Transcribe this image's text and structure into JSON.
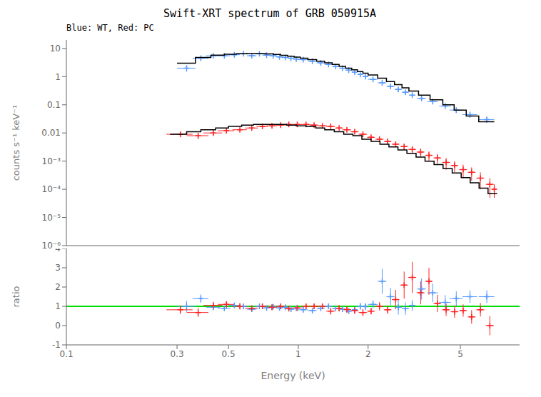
{
  "chart_data": [
    {
      "type": "scatter",
      "title": "Swift-XRT spectrum of GRB 050915A",
      "subtitle": "Blue: WT, Red: PC",
      "y_label": "counts s⁻¹ keV⁻¹",
      "log": true,
      "tick_labels": "y",
      "xlim": [
        0.1,
        9.0
      ],
      "xticks": [
        0.1,
        0.3,
        0.5,
        1,
        2,
        5
      ],
      "ylim": [
        1e-06,
        20
      ],
      "yticks": [
        {
          "value": 1e-06,
          "label": "10⁻⁶"
        },
        {
          "value": 1e-05,
          "label": "10⁻⁵"
        },
        {
          "value": 0.0001,
          "label": "10⁻⁴"
        },
        {
          "value": 0.001,
          "label": "10⁻³"
        },
        0.01,
        0.1,
        1,
        10
      ],
      "series": [
        {
          "color": "#5599ff",
          "marker": "plus",
          "x": [
            0.33,
            0.38,
            0.43,
            0.48,
            0.53,
            0.58,
            0.63,
            0.68,
            0.73,
            0.78,
            0.83,
            0.88,
            0.93,
            0.98,
            1.05,
            1.15,
            1.25,
            1.35,
            1.45,
            1.55,
            1.65,
            1.75,
            1.85,
            1.95,
            2.1,
            2.3,
            2.5,
            2.7,
            2.9,
            3.1,
            3.4,
            3.8,
            4.3,
            4.8,
            5.5,
            6.5
          ],
          "x_err": [
            0.03,
            0.03,
            0.03,
            0.03,
            0.03,
            0.03,
            0.03,
            0.03,
            0.03,
            0.03,
            0.03,
            0.03,
            0.03,
            0.03,
            0.05,
            0.05,
            0.05,
            0.05,
            0.05,
            0.05,
            0.05,
            0.05,
            0.05,
            0.05,
            0.1,
            0.1,
            0.1,
            0.1,
            0.1,
            0.1,
            0.15,
            0.2,
            0.25,
            0.3,
            0.4,
            0.5
          ],
          "values": [
            2.0,
            4.5,
            5.5,
            5.5,
            6.0,
            6.5,
            5.5,
            6.5,
            5.8,
            5.5,
            5.0,
            4.8,
            4.5,
            4.2,
            4.0,
            3.5,
            3.1,
            2.7,
            2.3,
            2.0,
            1.7,
            1.45,
            1.2,
            1.0,
            0.8,
            0.6,
            0.45,
            0.35,
            0.28,
            0.22,
            0.17,
            0.13,
            0.09,
            0.065,
            0.045,
            0.03
          ],
          "y_err_lo": [
            0.5,
            0.6,
            0.6,
            0.5,
            0.5,
            0.5,
            0.5,
            0.5,
            0.4,
            0.4,
            0.35,
            0.35,
            0.3,
            0.3,
            0.3,
            0.25,
            0.22,
            0.2,
            0.18,
            0.15,
            0.14,
            0.12,
            0.1,
            0.09,
            0.08,
            0.07,
            0.06,
            0.05,
            0.04,
            0.035,
            0.03,
            0.025,
            0.018,
            0.014,
            0.01,
            0.007
          ],
          "y_err_hi": [
            0.5,
            0.6,
            0.6,
            0.5,
            0.5,
            0.5,
            0.5,
            0.5,
            0.4,
            0.4,
            0.35,
            0.35,
            0.3,
            0.3,
            0.3,
            0.25,
            0.22,
            0.2,
            0.18,
            0.15,
            0.14,
            0.12,
            0.1,
            0.09,
            0.08,
            0.07,
            0.06,
            0.05,
            0.04,
            0.035,
            0.03,
            0.025,
            0.018,
            0.014,
            0.01,
            0.007
          ]
        },
        {
          "color": "#ff2222",
          "marker": "plus",
          "x": [
            0.31,
            0.37,
            0.43,
            0.49,
            0.56,
            0.63,
            0.7,
            0.77,
            0.84,
            0.91,
            0.99,
            1.08,
            1.17,
            1.27,
            1.38,
            1.5,
            1.62,
            1.75,
            1.9,
            2.06,
            2.24,
            2.43,
            2.63,
            2.86,
            3.1,
            3.37,
            3.66,
            3.98,
            4.34,
            4.72,
            5.14,
            5.59,
            6.1,
            6.7,
            7.0
          ],
          "x_err": [
            0.04,
            0.04,
            0.04,
            0.04,
            0.04,
            0.04,
            0.04,
            0.04,
            0.04,
            0.04,
            0.05,
            0.05,
            0.05,
            0.06,
            0.06,
            0.06,
            0.07,
            0.07,
            0.08,
            0.08,
            0.09,
            0.09,
            0.1,
            0.11,
            0.12,
            0.13,
            0.14,
            0.15,
            0.17,
            0.18,
            0.2,
            0.22,
            0.24,
            0.27,
            0.15
          ],
          "values": [
            0.009,
            0.008,
            0.01,
            0.012,
            0.013,
            0.015,
            0.017,
            0.018,
            0.019,
            0.02,
            0.02,
            0.02,
            0.019,
            0.018,
            0.017,
            0.015,
            0.013,
            0.011,
            0.009,
            0.007,
            0.006,
            0.005,
            0.004,
            0.0033,
            0.0026,
            0.0021,
            0.0016,
            0.0013,
            0.0009,
            0.0007,
            0.0005,
            0.0004,
            0.00025,
            0.00015,
            0.0001
          ],
          "y_err_lo": [
            0.002,
            0.002,
            0.002,
            0.002,
            0.002,
            0.002,
            0.002,
            0.002,
            0.002,
            0.002,
            0.002,
            0.0018,
            0.0018,
            0.0018,
            0.0016,
            0.0016,
            0.0014,
            0.0013,
            0.0012,
            0.001,
            0.001,
            0.001,
            0.0009,
            0.0008,
            0.0007,
            0.0007,
            0.0006,
            0.0005,
            0.0004,
            0.0003,
            0.00025,
            0.0002,
            0.00015,
            0.0001,
            5e-05
          ],
          "y_err_hi": [
            0.002,
            0.002,
            0.002,
            0.002,
            0.002,
            0.002,
            0.002,
            0.002,
            0.002,
            0.002,
            0.002,
            0.0018,
            0.0018,
            0.0018,
            0.0016,
            0.0016,
            0.0014,
            0.0013,
            0.0012,
            0.001,
            0.001,
            0.001,
            0.0009,
            0.0008,
            0.0007,
            0.0007,
            0.0006,
            0.0005,
            0.0004,
            0.0003,
            0.00025,
            0.0002,
            0.00015,
            0.0001,
            5e-05
          ]
        },
        {
          "type": "step",
          "color": "black",
          "x_lo": [
            0.3,
            0.36,
            0.42,
            0.48,
            0.54,
            0.6,
            0.66,
            0.72,
            0.78,
            0.84,
            0.9,
            0.96,
            1.02,
            1.1,
            1.2,
            1.3,
            1.4,
            1.5,
            1.6,
            1.7,
            1.8,
            1.9,
            2.0,
            2.2,
            2.4,
            2.6,
            2.8,
            3.0,
            3.3,
            3.7,
            4.2,
            4.7,
            5.3,
            6.0
          ],
          "x_hi": [
            0.36,
            0.42,
            0.48,
            0.54,
            0.6,
            0.66,
            0.72,
            0.78,
            0.84,
            0.9,
            0.96,
            1.02,
            1.1,
            1.2,
            1.3,
            1.4,
            1.5,
            1.6,
            1.7,
            1.8,
            1.9,
            2.0,
            2.2,
            2.4,
            2.6,
            2.8,
            3.0,
            3.3,
            3.7,
            4.2,
            4.7,
            5.3,
            6.0,
            7.0
          ],
          "values": [
            3.0,
            4.8,
            5.8,
            6.2,
            6.5,
            6.6,
            6.6,
            6.4,
            6.1,
            5.7,
            5.3,
            4.9,
            4.5,
            4.0,
            3.5,
            3.1,
            2.7,
            2.3,
            2.0,
            1.75,
            1.52,
            1.32,
            1.15,
            0.88,
            0.67,
            0.52,
            0.4,
            0.31,
            0.22,
            0.15,
            0.1,
            0.065,
            0.04,
            0.025
          ]
        },
        {
          "type": "step",
          "color": "black",
          "x_lo": [
            0.28,
            0.33,
            0.38,
            0.44,
            0.5,
            0.57,
            0.64,
            0.72,
            0.8,
            0.89,
            0.98,
            1.08,
            1.19,
            1.3,
            1.43,
            1.57,
            1.72,
            1.88,
            2.06,
            2.25,
            2.46,
            2.69,
            2.94,
            3.22,
            3.52,
            3.85,
            4.21,
            4.61,
            5.04,
            5.51,
            6.02,
            6.58
          ],
          "x_hi": [
            0.33,
            0.38,
            0.44,
            0.5,
            0.57,
            0.64,
            0.72,
            0.8,
            0.89,
            0.98,
            1.08,
            1.19,
            1.3,
            1.43,
            1.57,
            1.72,
            1.88,
            2.06,
            2.25,
            2.46,
            2.69,
            2.94,
            3.22,
            3.52,
            3.85,
            4.21,
            4.61,
            5.04,
            5.51,
            6.02,
            6.58,
            7.2
          ],
          "values": [
            0.009,
            0.011,
            0.013,
            0.015,
            0.017,
            0.019,
            0.02,
            0.02,
            0.02,
            0.019,
            0.018,
            0.017,
            0.015,
            0.013,
            0.011,
            0.009,
            0.008,
            0.006,
            0.005,
            0.004,
            0.0032,
            0.0025,
            0.0019,
            0.0014,
            0.001,
            0.00075,
            0.00055,
            0.00038,
            0.00026,
            0.00017,
            0.00011,
            7e-05
          ]
        }
      ]
    },
    {
      "type": "scatter",
      "x_label": "Energy (keV)",
      "y_label": "ratio",
      "log": "x",
      "xlim": [
        0.1,
        9.0
      ],
      "xticks": [
        0.1,
        0.3,
        0.5,
        1,
        2,
        5
      ],
      "ylim": [
        -1,
        4
      ],
      "yticks": [
        -1,
        0,
        1,
        2,
        3,
        4
      ],
      "series": [
        {
          "type": "hline",
          "color": "#00dd00",
          "values": [
            1.0
          ]
        },
        {
          "color": "#5599ff",
          "marker": "plus",
          "x": [
            0.33,
            0.38,
            0.43,
            0.48,
            0.53,
            0.58,
            0.63,
            0.68,
            0.73,
            0.78,
            0.83,
            0.88,
            0.93,
            0.98,
            1.05,
            1.15,
            1.25,
            1.35,
            1.45,
            1.55,
            1.65,
            1.75,
            1.85,
            1.95,
            2.1,
            2.3,
            2.5,
            2.7,
            2.9,
            3.1,
            3.4,
            3.8,
            4.3,
            4.8,
            5.5,
            6.5
          ],
          "x_err": [
            0.03,
            0.03,
            0.03,
            0.03,
            0.03,
            0.03,
            0.03,
            0.03,
            0.03,
            0.03,
            0.03,
            0.03,
            0.03,
            0.03,
            0.05,
            0.05,
            0.05,
            0.05,
            0.05,
            0.05,
            0.05,
            0.05,
            0.05,
            0.05,
            0.1,
            0.1,
            0.1,
            0.1,
            0.1,
            0.1,
            0.15,
            0.2,
            0.25,
            0.3,
            0.4,
            0.5
          ],
          "values": [
            1.0,
            1.4,
            0.95,
            0.9,
            1.05,
            1.0,
            0.85,
            1.0,
            0.92,
            0.98,
            0.92,
            0.95,
            0.85,
            0.9,
            0.82,
            0.78,
            0.9,
            1.0,
            0.9,
            0.85,
            0.75,
            0.82,
            1.0,
            0.98,
            1.1,
            2.3,
            1.5,
            0.95,
            0.88,
            1.05,
            1.9,
            1.7,
            1.2,
            1.4,
            1.5,
            1.5
          ],
          "y_err": [
            0.28,
            0.22,
            0.15,
            0.14,
            0.12,
            0.12,
            0.12,
            0.11,
            0.11,
            0.11,
            0.1,
            0.1,
            0.1,
            0.1,
            0.14,
            0.14,
            0.13,
            0.13,
            0.13,
            0.13,
            0.14,
            0.14,
            0.18,
            0.18,
            0.22,
            0.65,
            0.45,
            0.38,
            0.32,
            0.28,
            0.55,
            0.48,
            0.38,
            0.38,
            0.33,
            0.33
          ]
        },
        {
          "color": "#ff2222",
          "marker": "plus",
          "x": [
            0.31,
            0.37,
            0.43,
            0.49,
            0.56,
            0.63,
            0.7,
            0.77,
            0.84,
            0.91,
            0.99,
            1.08,
            1.17,
            1.27,
            1.38,
            1.5,
            1.62,
            1.75,
            1.9,
            2.06,
            2.24,
            2.43,
            2.63,
            2.86,
            3.1,
            3.37,
            3.66,
            3.98,
            4.34,
            4.72,
            5.14,
            5.59,
            6.1,
            6.7
          ],
          "x_err": [
            0.04,
            0.04,
            0.04,
            0.04,
            0.04,
            0.04,
            0.04,
            0.04,
            0.04,
            0.04,
            0.05,
            0.05,
            0.05,
            0.06,
            0.06,
            0.06,
            0.07,
            0.07,
            0.08,
            0.08,
            0.09,
            0.09,
            0.1,
            0.11,
            0.12,
            0.13,
            0.14,
            0.15,
            0.17,
            0.18,
            0.2,
            0.22,
            0.24,
            0.27
          ],
          "values": [
            0.82,
            0.68,
            1.05,
            1.1,
            1.0,
            0.9,
            1.0,
            0.95,
            1.0,
            0.88,
            0.92,
            1.0,
            1.0,
            1.0,
            0.75,
            0.9,
            0.83,
            0.78,
            0.68,
            0.75,
            1.0,
            0.82,
            1.35,
            2.1,
            2.5,
            1.7,
            2.3,
            1.15,
            0.82,
            0.72,
            0.78,
            0.45,
            0.82,
            0.0
          ],
          "y_err": [
            0.22,
            0.23,
            0.18,
            0.17,
            0.16,
            0.15,
            0.14,
            0.14,
            0.14,
            0.13,
            0.13,
            0.13,
            0.13,
            0.13,
            0.17,
            0.17,
            0.17,
            0.17,
            0.18,
            0.17,
            0.22,
            0.22,
            0.5,
            0.7,
            0.8,
            0.6,
            0.7,
            0.45,
            0.32,
            0.32,
            0.32,
            0.35,
            0.35,
            0.5
          ]
        }
      ]
    }
  ]
}
